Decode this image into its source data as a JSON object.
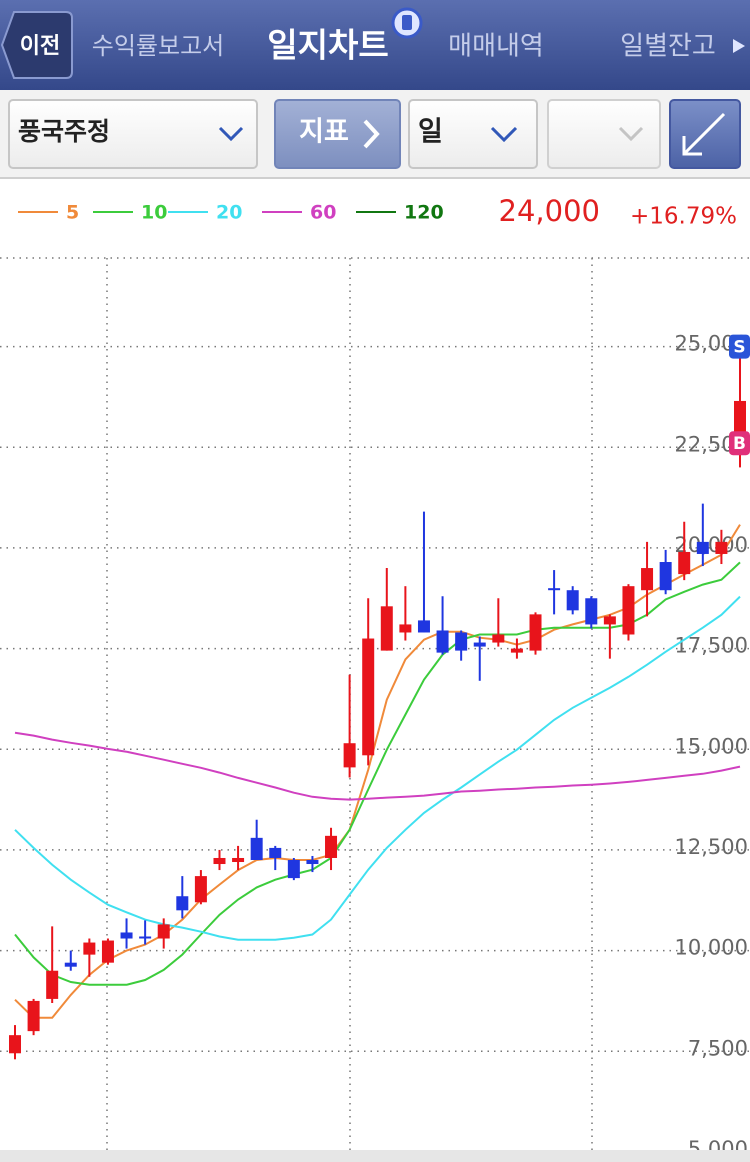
{
  "nav": {
    "back": "이전",
    "tabs": [
      "수익률보고서",
      "일지차트",
      "매매내역",
      "일별잔고"
    ]
  },
  "toolbar": {
    "stock": "풍국주정",
    "indicator": "지표",
    "period": "일"
  },
  "quote": {
    "price": "24,000",
    "change": "+16.79%"
  },
  "chart_data": {
    "type": "candlestick",
    "up_color": "#e8141b",
    "down_color": "#1f36e0",
    "ylim": [
      4750,
      27200
    ],
    "yticks": [
      {
        "value": 5000,
        "label": "5,000"
      },
      {
        "value": 7500,
        "label": "7,500"
      },
      {
        "value": 10000,
        "label": "10,000"
      },
      {
        "value": 12500,
        "label": "12,500"
      },
      {
        "value": 15000,
        "label": "15,000"
      },
      {
        "value": 17500,
        "label": "17,500"
      },
      {
        "value": 20000,
        "label": "20,000"
      },
      {
        "value": 22500,
        "label": "22,500"
      },
      {
        "value": 25000,
        "label": "25,000"
      }
    ],
    "grid": true,
    "open": [
      7450,
      8000,
      8800,
      9700,
      9900,
      9700,
      10450,
      10350,
      10300,
      11350,
      11200,
      12150,
      12200,
      12800,
      12550,
      12250,
      12250,
      12300,
      14550,
      14850,
      17450,
      17900,
      18200,
      17950,
      17900,
      17650,
      17650,
      17400,
      17450,
      19000,
      18950,
      18750,
      18100,
      17850,
      18950,
      19650,
      19350,
      20150,
      19850,
      22600
    ],
    "high": [
      8150,
      8800,
      10600,
      10000,
      10300,
      10300,
      10800,
      10750,
      10800,
      11850,
      12000,
      12500,
      12600,
      13250,
      12600,
      12300,
      12350,
      13050,
      16850,
      18750,
      19500,
      19050,
      20900,
      18800,
      17950,
      17800,
      18750,
      17750,
      18400,
      19450,
      19050,
      18800,
      18350,
      19100,
      20150,
      19950,
      20650,
      21100,
      20450,
      24750
    ],
    "low": [
      7300,
      7900,
      8700,
      9500,
      9350,
      9650,
      10050,
      10150,
      10050,
      10800,
      11150,
      12000,
      12000,
      12250,
      12000,
      11750,
      11950,
      12000,
      14300,
      14600,
      17450,
      17700,
      17900,
      17350,
      17200,
      16700,
      17550,
      17250,
      17350,
      18350,
      18350,
      18000,
      17250,
      17700,
      18300,
      18850,
      19200,
      19550,
      19600,
      22000
    ],
    "close": [
      7900,
      8750,
      9500,
      9600,
      10200,
      10250,
      10300,
      10300,
      10650,
      11000,
      11850,
      12300,
      12300,
      12250,
      12300,
      11800,
      12150,
      12850,
      15150,
      17750,
      18550,
      18100,
      17900,
      17400,
      17450,
      17550,
      17850,
      17500,
      18350,
      18950,
      18450,
      18100,
      18300,
      19050,
      19500,
      18950,
      19900,
      19850,
      20150,
      23650
    ],
    "series": [
      {
        "name": "5",
        "color": "#f08a3a",
        "values": [
          8780,
          8330,
          8330,
          8900,
          9400,
          9770,
          10000,
          10150,
          10400,
          10770,
          11270,
          11640,
          12000,
          12250,
          12300,
          12250,
          12250,
          12380,
          13000,
          14490,
          16230,
          17230,
          17720,
          17920,
          17920,
          17770,
          17720,
          17600,
          17720,
          17970,
          18100,
          18220,
          18340,
          18520,
          18840,
          19090,
          19340,
          19580,
          19830,
          20580
        ]
      },
      {
        "name": "10",
        "color": "#3ccc3c",
        "values": [
          10400,
          9830,
          9400,
          9220,
          9150,
          9150,
          9150,
          9270,
          9520,
          9900,
          10400,
          10890,
          11270,
          11570,
          11760,
          11890,
          12010,
          12300,
          13000,
          14000,
          14990,
          15860,
          16730,
          17350,
          17720,
          17850,
          17850,
          17850,
          17970,
          18020,
          18020,
          18020,
          18020,
          18100,
          18340,
          18720,
          18910,
          19090,
          19210,
          19640
        ]
      },
      {
        "name": "20",
        "color": "#40e0f0",
        "values": [
          13000,
          12550,
          12130,
          11760,
          11440,
          11140,
          10950,
          10770,
          10650,
          10570,
          10470,
          10350,
          10270,
          10270,
          10270,
          10320,
          10400,
          10770,
          11390,
          12010,
          12550,
          13000,
          13420,
          13750,
          14050,
          14370,
          14690,
          14990,
          15360,
          15730,
          16030,
          16280,
          16530,
          16800,
          17100,
          17420,
          17720,
          18020,
          18340,
          18790
        ]
      },
      {
        "name": "60",
        "color": "#d040c0",
        "values": [
          15410,
          15340,
          15240,
          15160,
          15090,
          15010,
          14940,
          14840,
          14740,
          14640,
          14540,
          14420,
          14290,
          14170,
          14050,
          13920,
          13820,
          13770,
          13750,
          13770,
          13800,
          13820,
          13850,
          13900,
          13950,
          13970,
          14000,
          14020,
          14050,
          14070,
          14100,
          14120,
          14150,
          14190,
          14240,
          14290,
          14340,
          14390,
          14470,
          14570
        ]
      },
      {
        "name": "120",
        "color": "#117711",
        "values": [
          null,
          null,
          null,
          null,
          null,
          null,
          null,
          null,
          null,
          null,
          null,
          null,
          null,
          null,
          null,
          null,
          null,
          null,
          null,
          null,
          null,
          null,
          null,
          null,
          null,
          null,
          null,
          null,
          null,
          null,
          null,
          null,
          null,
          null,
          null,
          null,
          null,
          null,
          null,
          null
        ]
      }
    ],
    "annotations": [
      {
        "label": "S",
        "value": 25000,
        "color": "#2a55d8"
      },
      {
        "label": "B",
        "value": 22600,
        "color": "#e0307a"
      }
    ]
  }
}
